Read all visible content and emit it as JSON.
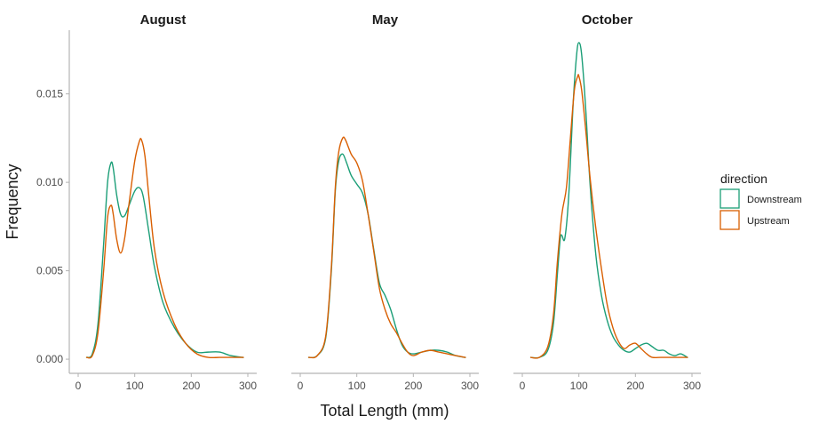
{
  "chart_data": {
    "type": "line",
    "subtype": "density",
    "xlabel": "Total Length (mm)",
    "ylabel": "Frequency",
    "xlim": [
      0,
      300
    ],
    "ylim": [
      -0.0008,
      0.0186
    ],
    "x_ticks": [
      0,
      100,
      200,
      300
    ],
    "y_ticks": [
      0.0,
      0.005,
      0.01,
      0.015
    ],
    "y_tick_labels": [
      "0.000",
      "0.005",
      "0.010",
      "0.015"
    ],
    "grid": false,
    "legend": {
      "title": "direction",
      "placement": "right",
      "entries": [
        {
          "name": "Downstream",
          "color": "#1b9e77"
        },
        {
          "name": "Upstream",
          "color": "#d95f02"
        }
      ]
    },
    "panels": [
      {
        "title": "August",
        "series": [
          {
            "name": "Downstream",
            "color": "#1b9e77",
            "x": [
              15,
              25,
              35,
              45,
              52,
              58,
              62,
              68,
              75,
              82,
              90,
              100,
              108,
              115,
              125,
              135,
              150,
              170,
              190,
              210,
              230,
              250,
              270,
              292
            ],
            "y": [
              0.0001,
              0.0003,
              0.002,
              0.0065,
              0.01,
              0.0111,
              0.0108,
              0.0093,
              0.0082,
              0.0081,
              0.0087,
              0.0095,
              0.0097,
              0.0092,
              0.0072,
              0.0052,
              0.0032,
              0.0018,
              0.0009,
              0.0004,
              0.0004,
              0.0004,
              0.0002,
              0.0001
            ]
          },
          {
            "name": "Upstream",
            "color": "#d95f02",
            "x": [
              15,
              25,
              35,
              45,
              52,
              58,
              62,
              68,
              75,
              82,
              90,
              100,
              108,
              112,
              118,
              125,
              135,
              150,
              170,
              190,
              210,
              230,
              250,
              270,
              292
            ],
            "y": [
              0.0001,
              0.0002,
              0.0015,
              0.005,
              0.008,
              0.0087,
              0.0082,
              0.0068,
              0.006,
              0.0068,
              0.0088,
              0.0112,
              0.0123,
              0.0124,
              0.0115,
              0.0092,
              0.0062,
              0.0038,
              0.002,
              0.0009,
              0.0003,
              0.0001,
              0.0001,
              0.0001,
              0.0001
            ]
          }
        ]
      },
      {
        "title": "May",
        "series": [
          {
            "name": "Downstream",
            "color": "#1b9e77",
            "x": [
              15,
              30,
              45,
              55,
              62,
              68,
              75,
              82,
              90,
              100,
              110,
              120,
              130,
              140,
              150,
              160,
              170,
              180,
              190,
              200,
              215,
              230,
              245,
              260,
              275,
              292
            ],
            "y": [
              0.0001,
              0.0002,
              0.0012,
              0.005,
              0.0095,
              0.0112,
              0.0116,
              0.0111,
              0.0104,
              0.0099,
              0.0094,
              0.0082,
              0.0062,
              0.0043,
              0.0036,
              0.0028,
              0.0017,
              0.0008,
              0.0004,
              0.0003,
              0.0004,
              0.0005,
              0.0005,
              0.0004,
              0.0002,
              0.0001
            ]
          },
          {
            "name": "Upstream",
            "color": "#d95f02",
            "x": [
              15,
              30,
              45,
              55,
              62,
              68,
              75,
              80,
              90,
              100,
              110,
              120,
              130,
              140,
              150,
              160,
              170,
              180,
              190,
              200,
              215,
              230,
              245,
              260,
              275,
              292
            ],
            "y": [
              0.0001,
              0.0002,
              0.0013,
              0.0052,
              0.0097,
              0.0117,
              0.0125,
              0.0124,
              0.0116,
              0.0111,
              0.0101,
              0.0082,
              0.0061,
              0.004,
              0.0028,
              0.002,
              0.0015,
              0.0009,
              0.0004,
              0.0002,
              0.0004,
              0.0005,
              0.0004,
              0.0003,
              0.0002,
              0.0001
            ]
          }
        ]
      },
      {
        "title": "October",
        "series": [
          {
            "name": "Downstream",
            "color": "#1b9e77",
            "x": [
              15,
              30,
              45,
              55,
              62,
              67,
              70,
              75,
              82,
              90,
              96,
              100,
              105,
              112,
              120,
              130,
              140,
              150,
              160,
              170,
              180,
              190,
              200,
              210,
              220,
              230,
              240,
              250,
              260,
              270,
              280,
              292
            ],
            "y": [
              0.0001,
              0.0001,
              0.0005,
              0.002,
              0.0048,
              0.0068,
              0.007,
              0.0068,
              0.0092,
              0.0145,
              0.0172,
              0.0179,
              0.0172,
              0.0142,
              0.0098,
              0.0059,
              0.0036,
              0.0022,
              0.0013,
              0.0008,
              0.0005,
              0.0004,
              0.0006,
              0.0008,
              0.0009,
              0.0007,
              0.0005,
              0.0005,
              0.0003,
              0.0002,
              0.0003,
              0.0001
            ]
          },
          {
            "name": "Upstream",
            "color": "#d95f02",
            "x": [
              15,
              30,
              45,
              55,
              62,
              70,
              78,
              85,
              92,
              98,
              100,
              105,
              112,
              120,
              130,
              140,
              150,
              160,
              170,
              180,
              190,
              200,
              210,
              220,
              230,
              245,
              260,
              275,
              292
            ],
            "y": [
              0.0001,
              0.0001,
              0.0007,
              0.0025,
              0.0055,
              0.0082,
              0.0097,
              0.0125,
              0.0152,
              0.016,
              0.016,
              0.0152,
              0.013,
              0.0102,
              0.0074,
              0.0051,
              0.0031,
              0.0018,
              0.001,
              0.0006,
              0.0008,
              0.0009,
              0.0006,
              0.0003,
              0.0001,
              0.0001,
              0.0001,
              0.0001,
              0.0001
            ]
          }
        ]
      }
    ]
  }
}
